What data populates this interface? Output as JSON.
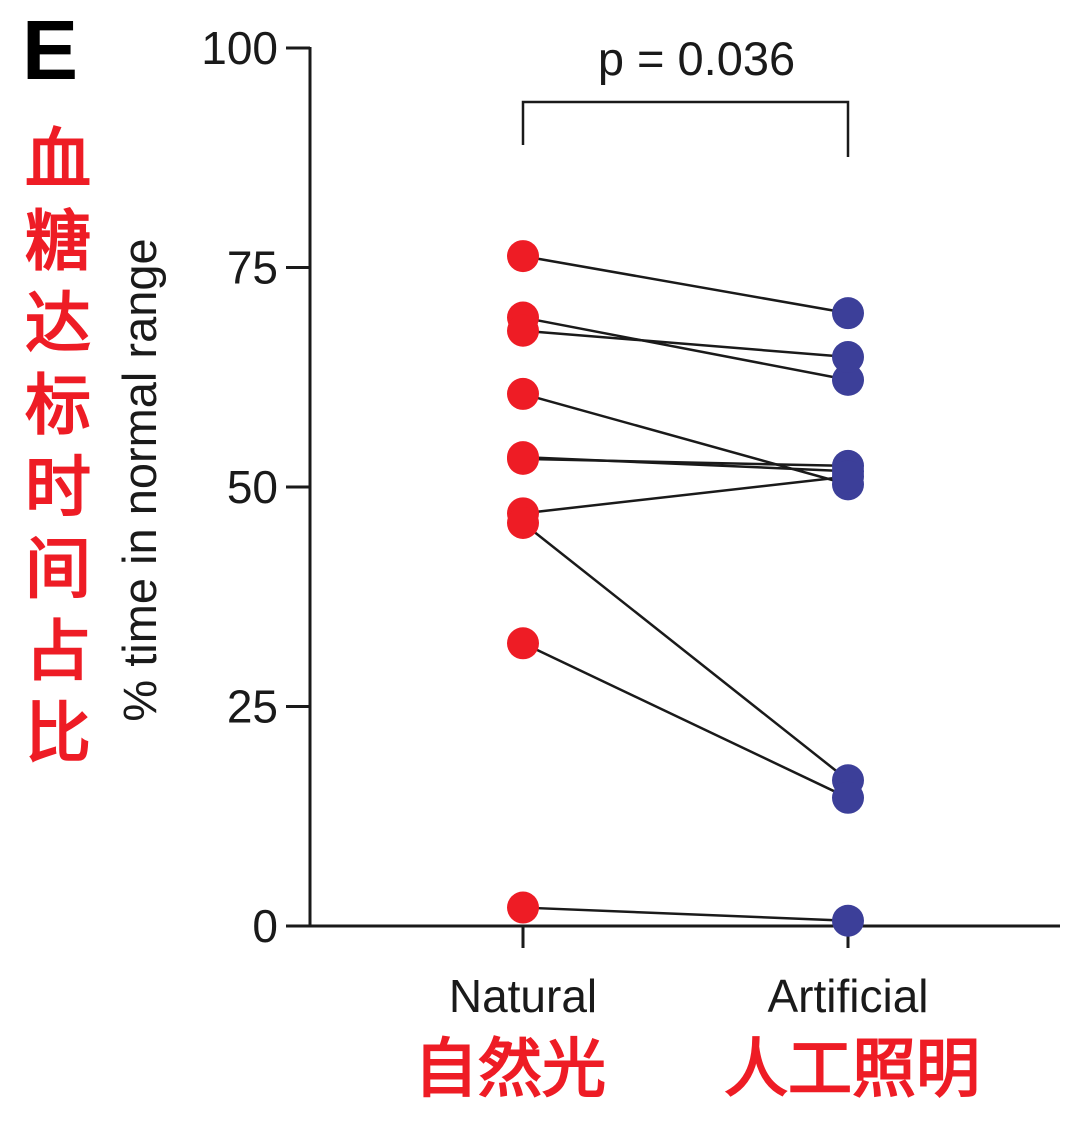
{
  "panel_label": "E",
  "chinese_ylabel": "血糖达标时间占比",
  "chinese_categories": [
    "自然光",
    "人工照明"
  ],
  "colors": {
    "natural": "#ee1c25",
    "artificial": "#3c3f99",
    "line": "#1a1a1a",
    "annotation": "#ee1c25"
  },
  "chart_data": {
    "type": "scatter",
    "subtype": "paired-dot-plot",
    "ylabel": "% time in normal range",
    "xlabel": "",
    "categories": [
      "Natural",
      "Artificial"
    ],
    "ylim": [
      0,
      100
    ],
    "yticks": [
      0,
      25,
      50,
      75,
      100
    ],
    "significance": {
      "text": "p = 0.036",
      "between": [
        "Natural",
        "Artificial"
      ]
    },
    "pairs": [
      {
        "natural": 76.3,
        "artificial": 69.8
      },
      {
        "natural": 69.3,
        "artificial": 62.2
      },
      {
        "natural": 67.8,
        "artificial": 64.8
      },
      {
        "natural": 60.6,
        "artificial": 50.3
      },
      {
        "natural": 53.4,
        "artificial": 51.8
      },
      {
        "natural": 53.2,
        "artificial": 52.4
      },
      {
        "natural": 47.0,
        "artificial": 51.2
      },
      {
        "natural": 45.9,
        "artificial": 16.6
      },
      {
        "natural": 32.2,
        "artificial": 14.6
      },
      {
        "natural": 2.1,
        "artificial": 0.6
      }
    ]
  }
}
